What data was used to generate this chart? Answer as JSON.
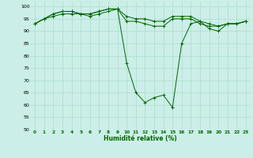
{
  "xlabel": "Humidité relative (%)",
  "ylabel": "",
  "xlim": [
    -0.5,
    23.5
  ],
  "ylim": [
    50,
    102
  ],
  "yticks": [
    50,
    55,
    60,
    65,
    70,
    75,
    80,
    85,
    90,
    95,
    100
  ],
  "xticks": [
    0,
    1,
    2,
    3,
    4,
    5,
    6,
    7,
    8,
    9,
    10,
    11,
    12,
    13,
    14,
    15,
    16,
    17,
    18,
    19,
    20,
    21,
    22,
    23
  ],
  "background_color": "#cceee8",
  "grid_color": "#aaddcc",
  "line_color": "#006600",
  "series": [
    [
      93,
      95,
      96,
      97,
      97,
      97,
      96,
      97,
      98,
      99,
      77,
      65,
      61,
      63,
      64,
      59,
      85,
      93,
      94,
      91,
      90,
      93,
      93,
      94
    ],
    [
      93,
      95,
      97,
      98,
      98,
      97,
      97,
      98,
      99,
      99,
      94,
      94,
      93,
      92,
      92,
      95,
      95,
      95,
      93,
      92,
      92,
      93,
      93,
      94
    ],
    [
      93,
      95,
      97,
      98,
      98,
      97,
      97,
      98,
      99,
      99,
      96,
      95,
      95,
      94,
      94,
      96,
      96,
      96,
      94,
      93,
      92,
      93,
      93,
      94
    ]
  ]
}
